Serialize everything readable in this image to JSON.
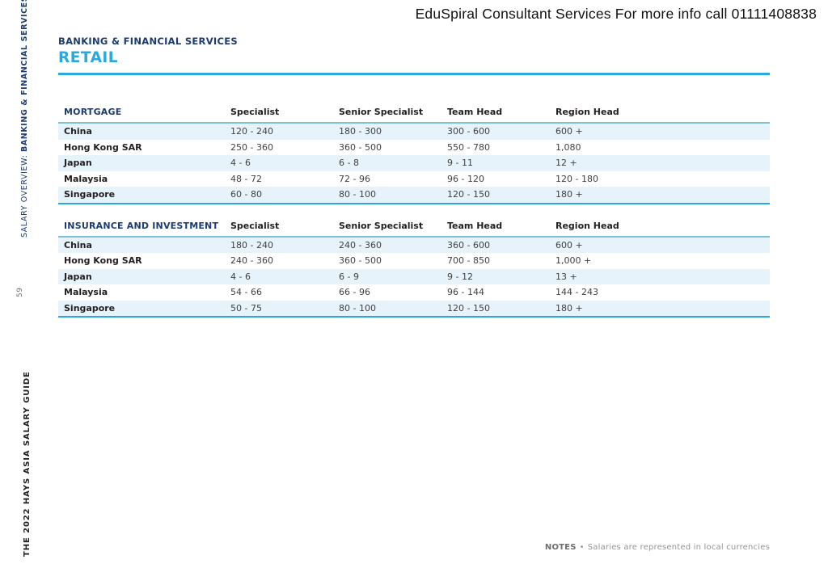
{
  "header": {
    "promo": "EduSpiral Consultant Services For more info call 01111408838"
  },
  "sidebar": {
    "overview_prefix": "SALARY OVERVIEW: ",
    "overview_bold": "BANKING & FINANCIAL SERVICES",
    "page_number": "59",
    "guide_title": "THE 2022 HAYS ASIA SALARY GUIDE"
  },
  "section": {
    "category": "BANKING & FINANCIAL SERVICES",
    "title": "RETAIL"
  },
  "tables": [
    {
      "title": "MORTGAGE",
      "columns": [
        "Specialist",
        "Senior Specialist",
        "Team Head",
        "Region Head"
      ],
      "rows": [
        {
          "country": "China",
          "values": [
            "120 - 240",
            "180 - 300",
            "300 - 600",
            "600 +"
          ]
        },
        {
          "country": "Hong Kong SAR",
          "values": [
            "250 - 360",
            "360 - 500",
            "550 - 780",
            "1,080"
          ]
        },
        {
          "country": "Japan",
          "values": [
            "4 - 6",
            "6 - 8",
            "9 - 11",
            "12 +"
          ]
        },
        {
          "country": "Malaysia",
          "values": [
            "48 - 72",
            "72 - 96",
            "96 - 120",
            "120 - 180"
          ]
        },
        {
          "country": "Singapore",
          "values": [
            "60 - 80",
            "80 - 100",
            "120 - 150",
            "180 +"
          ]
        }
      ]
    },
    {
      "title": "INSURANCE AND INVESTMENT",
      "columns": [
        "Specialist",
        "Senior Specialist",
        "Team Head",
        "Region Head"
      ],
      "rows": [
        {
          "country": "China",
          "values": [
            "180 - 240",
            "240 - 360",
            "360 - 600",
            "600 +"
          ]
        },
        {
          "country": "Hong Kong SAR",
          "values": [
            "240 - 360",
            "360 - 500",
            "700 - 850",
            "1,000 +"
          ]
        },
        {
          "country": "Japan",
          "values": [
            "4 - 6",
            "6 - 9",
            "9 - 12",
            "13 +"
          ]
        },
        {
          "country": "Malaysia",
          "values": [
            "54 - 66",
            "66 - 96",
            "96 - 144",
            "144 - 243"
          ]
        },
        {
          "country": "Singapore",
          "values": [
            "50 - 75",
            "80 - 100",
            "120 - 150",
            "180 +"
          ]
        }
      ]
    }
  ],
  "notes": {
    "label": "NOTES",
    "separator": "•",
    "text": "Salaries are represented in local currencies"
  },
  "colors": {
    "navy": "#1d3c6d",
    "cyan": "#29a9e0",
    "stripe": "#e7f3fa",
    "ink": "#231f20",
    "value_text": "#414042",
    "notes_gray": "#939598",
    "header_rule": "#7fc0db"
  }
}
